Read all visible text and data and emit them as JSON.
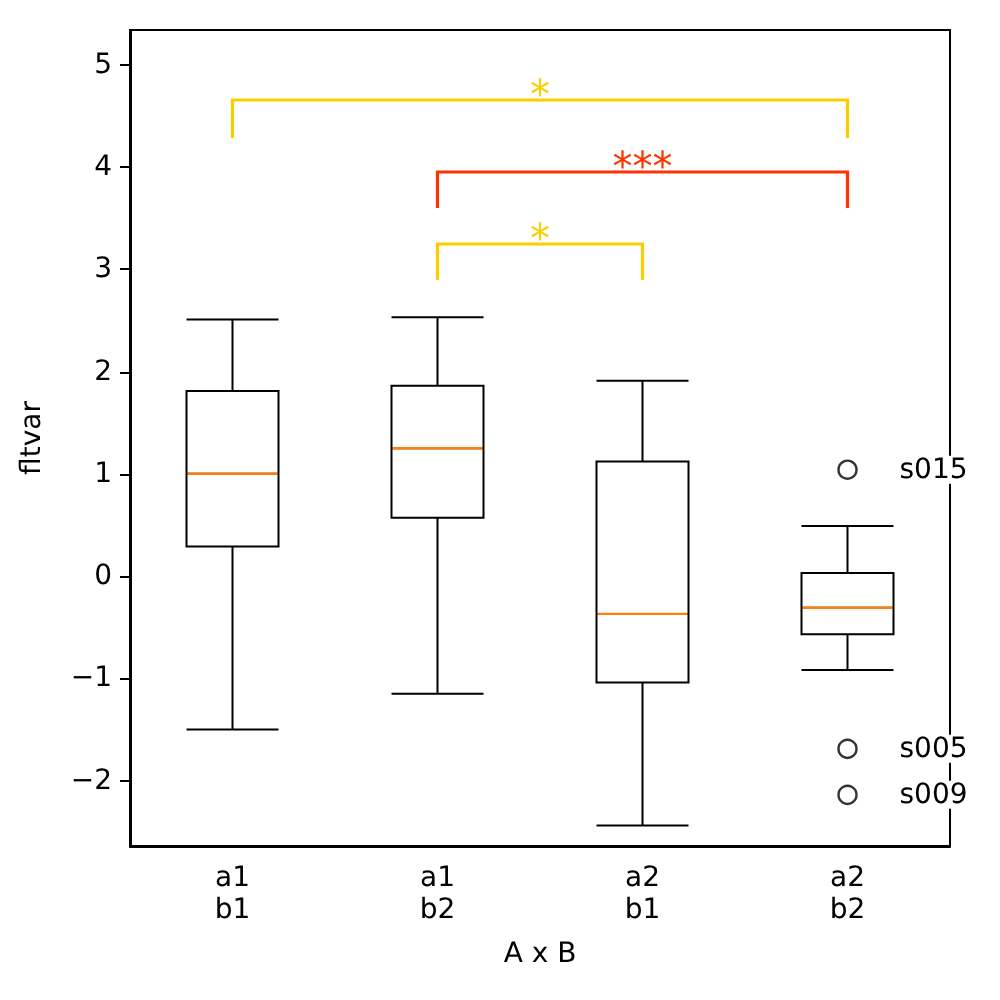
{
  "chart_data": {
    "type": "box",
    "xlabel": "A x B",
    "ylabel": "fltvar",
    "categories": [
      "a1\nb1",
      "a1\nb2",
      "a2\nb1",
      "a2\nb2"
    ],
    "color": "#000000",
    "boxes": [
      {
        "low": -1.5,
        "q1": 0.29,
        "median": 1.0,
        "q3": 1.81,
        "high": 2.51
      },
      {
        "low": -1.15,
        "q1": 0.57,
        "median": 1.25,
        "q3": 1.86,
        "high": 2.53
      },
      {
        "low": -2.44,
        "q1": -1.04,
        "median": -0.37,
        "q3": 1.12,
        "high": 1.91
      },
      {
        "low": -0.92,
        "q1": -0.57,
        "median": -0.31,
        "q3": 0.03,
        "high": 0.49,
        "outliers": [
          1.04,
          -1.69,
          -2.14
        ]
      }
    ],
    "marker": "circle",
    "ylim": [
      -2.64,
      5.34
    ],
    "yticks": [
      {
        "value": -2,
        "label": "−2"
      },
      {
        "value": -1,
        "label": "−1"
      },
      0,
      1,
      2,
      3,
      4,
      5
    ],
    "annotations": [
      "*",
      "***",
      "*",
      "s015",
      "s005",
      "s009"
    ]
  }
}
